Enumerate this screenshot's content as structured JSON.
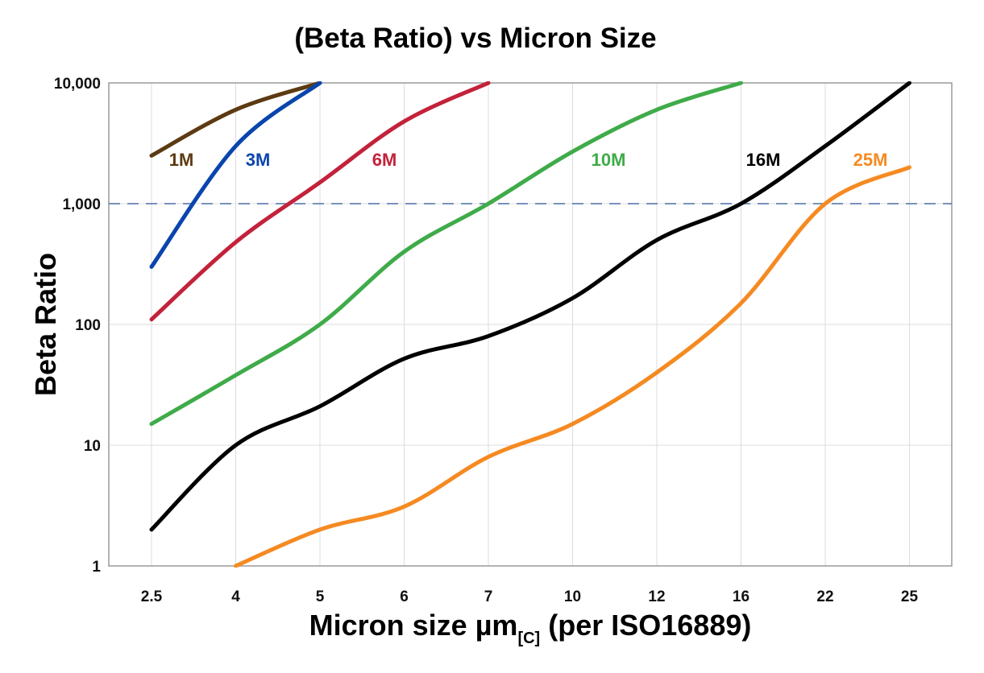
{
  "chart_data": {
    "type": "line",
    "title": "(Beta Ratio) vs Micron Size",
    "xlabel_main": "Micron size µm",
    "xlabel_sub": "[C]",
    "xlabel_rest": "(per ISO16889)",
    "ylabel": "Beta Ratio",
    "y_scale": "log",
    "ylim": [
      1,
      10000
    ],
    "y_ticks": [
      1,
      10,
      100,
      1000,
      10000
    ],
    "y_tick_labels": [
      "1",
      "10",
      "100",
      "1,000",
      "10,000"
    ],
    "categories": [
      "2.5",
      "4",
      "5",
      "6",
      "7",
      "10",
      "12",
      "16",
      "22",
      "25"
    ],
    "grid": true,
    "reference_line": {
      "y": 1000,
      "style": "dashed",
      "color": "#4a6fa5"
    },
    "series": [
      {
        "name": "1M",
        "color": "#5c3a12",
        "values": [
          2500,
          6000,
          10000,
          null,
          null,
          null,
          null,
          null,
          null,
          null
        ]
      },
      {
        "name": "3M",
        "color": "#0a45ad",
        "values": [
          300,
          3000,
          10000,
          null,
          null,
          null,
          null,
          null,
          null,
          null
        ]
      },
      {
        "name": "6M",
        "color": "#c3223b",
        "values": [
          110,
          480,
          1500,
          4800,
          10000,
          null,
          null,
          null,
          null,
          null
        ]
      },
      {
        "name": "10M",
        "color": "#3fab49",
        "values": [
          15,
          38,
          100,
          400,
          1000,
          2700,
          6000,
          10000,
          null,
          null
        ]
      },
      {
        "name": "16M",
        "color": "#000000",
        "values": [
          2,
          10,
          21,
          52,
          80,
          165,
          500,
          1000,
          3000,
          10000
        ]
      },
      {
        "name": "25M",
        "color": "#f58a22",
        "values": [
          null,
          1,
          2,
          3.1,
          8,
          15,
          40,
          150,
          1000,
          2000
        ]
      }
    ]
  }
}
